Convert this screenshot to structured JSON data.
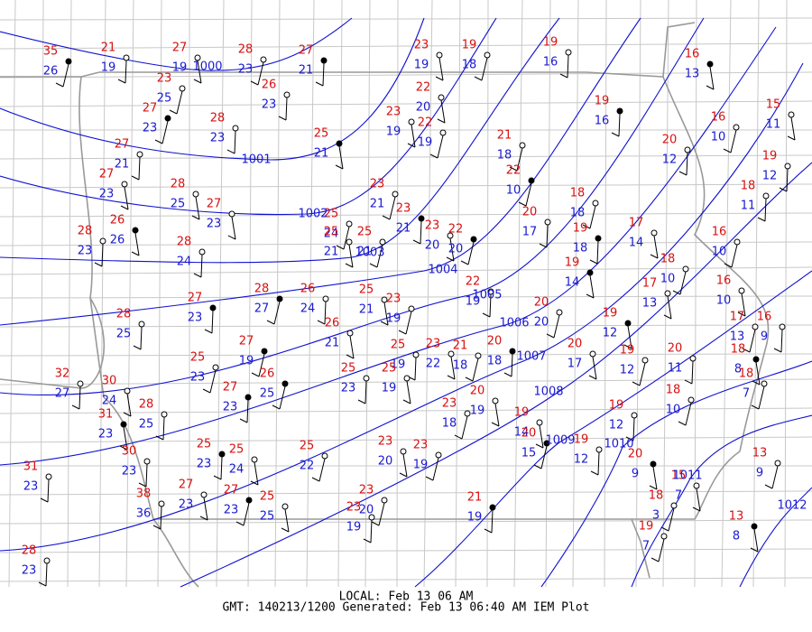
{
  "stations": [
    {
      "temp": 35,
      "dewpoint": 26
    },
    {
      "temp": 21,
      "dewpoint": 19
    },
    {
      "temp": 27,
      "dewpoint": 19
    },
    {
      "temp": 28,
      "dewpoint": 23
    },
    {
      "temp": 27,
      "dewpoint": 21
    },
    {
      "temp": 23,
      "dewpoint": 19
    },
    {
      "temp": 19,
      "dewpoint": 18
    },
    {
      "temp": 19,
      "dewpoint": 16
    },
    {
      "temp": 16,
      "dewpoint": 13
    },
    {
      "temp": 23,
      "dewpoint": 25
    },
    {
      "temp": 26,
      "dewpoint": 23
    },
    {
      "temp": 22,
      "dewpoint": 20
    },
    {
      "temp": 27,
      "dewpoint": 23
    },
    {
      "temp": 28,
      "dewpoint": 23
    },
    {
      "temp": 23,
      "dewpoint": 19
    },
    {
      "temp": 22,
      "dewpoint": 19
    },
    {
      "temp": 19,
      "dewpoint": 16
    },
    {
      "temp": 15,
      "dewpoint": 11
    },
    {
      "temp": 16,
      "dewpoint": 10
    },
    {
      "temp": 27,
      "dewpoint": 21
    },
    {
      "temp": 25,
      "dewpoint": 21
    },
    {
      "temp": 21,
      "dewpoint": 18
    },
    {
      "temp": 20,
      "dewpoint": 12
    },
    {
      "temp": 27,
      "dewpoint": 23
    },
    {
      "temp": 22,
      "dewpoint": 10
    },
    {
      "temp": 19,
      "dewpoint": 12
    },
    {
      "temp": 28,
      "dewpoint": 25
    },
    {
      "temp": 23,
      "dewpoint": 21
    },
    {
      "temp": 23,
      "dewpoint": 21
    },
    {
      "temp": 27,
      "dewpoint": 23
    },
    {
      "temp": 18,
      "dewpoint": 18
    },
    {
      "temp": 18,
      "dewpoint": 11
    },
    {
      "temp": 26,
      "dewpoint": 26
    },
    {
      "temp": 25,
      "dewpoint": 24
    },
    {
      "temp": 20,
      "dewpoint": 17
    },
    {
      "temp": 23,
      "dewpoint": 20
    },
    {
      "temp": 22,
      "dewpoint": 20
    },
    {
      "temp": 28,
      "dewpoint": 23
    },
    {
      "temp": 25,
      "dewpoint": 21
    },
    {
      "temp": 25,
      "dewpoint": 21
    },
    {
      "temp": 19,
      "dewpoint": 18
    },
    {
      "temp": 17,
      "dewpoint": 14
    },
    {
      "temp": 16,
      "dewpoint": 10
    },
    {
      "temp": 28,
      "dewpoint": 24
    },
    {
      "temp": 19,
      "dewpoint": 14
    },
    {
      "temp": 18,
      "dewpoint": 10
    },
    {
      "temp": 22,
      "dewpoint": 19
    },
    {
      "temp": 16,
      "dewpoint": 10
    },
    {
      "temp": 28,
      "dewpoint": 27
    },
    {
      "temp": 26,
      "dewpoint": 24
    },
    {
      "temp": 25,
      "dewpoint": 21
    },
    {
      "temp": 23,
      "dewpoint": 19
    },
    {
      "temp": 27,
      "dewpoint": 23
    },
    {
      "temp": 17,
      "dewpoint": 13
    },
    {
      "temp": 20,
      "dewpoint": 20
    },
    {
      "temp": 28,
      "dewpoint": 25
    },
    {
      "temp": 19,
      "dewpoint": 12
    },
    {
      "temp": 17,
      "dewpoint": 13
    },
    {
      "temp": 16,
      "dewpoint": 9
    },
    {
      "temp": 26,
      "dewpoint": 21
    },
    {
      "temp": 27,
      "dewpoint": 19
    },
    {
      "temp": 25,
      "dewpoint": 19
    },
    {
      "temp": 23,
      "dewpoint": 22
    },
    {
      "temp": 21,
      "dewpoint": 18
    },
    {
      "temp": 20,
      "dewpoint": 18
    },
    {
      "temp": 20,
      "dewpoint": 17
    },
    {
      "temp": 19,
      "dewpoint": 12
    },
    {
      "temp": 20,
      "dewpoint": 11
    },
    {
      "temp": 18,
      "dewpoint": 8
    },
    {
      "temp": 25,
      "dewpoint": 23
    },
    {
      "temp": 25,
      "dewpoint": 23
    },
    {
      "temp": 25,
      "dewpoint": 19
    },
    {
      "temp": 26,
      "dewpoint": 25
    },
    {
      "temp": 32,
      "dewpoint": 27
    },
    {
      "temp": 30,
      "dewpoint": 24
    },
    {
      "temp": 18,
      "dewpoint": 7
    },
    {
      "temp": 27,
      "dewpoint": 23
    },
    {
      "temp": 20,
      "dewpoint": 19
    },
    {
      "temp": 18,
      "dewpoint": 10
    },
    {
      "temp": 28,
      "dewpoint": 25
    },
    {
      "temp": 31,
      "dewpoint": 23
    },
    {
      "temp": 23,
      "dewpoint": 18
    },
    {
      "temp": 19,
      "dewpoint": 12
    },
    {
      "temp": 19,
      "dewpoint": 14
    },
    {
      "temp": 20,
      "dewpoint": 15
    },
    {
      "temp": 19,
      "dewpoint": 12
    },
    {
      "temp": 23,
      "dewpoint": 20
    },
    {
      "temp": 23,
      "dewpoint": 19
    },
    {
      "temp": 25,
      "dewpoint": 23
    },
    {
      "temp": 25,
      "dewpoint": 24
    },
    {
      "temp": 25,
      "dewpoint": 22
    },
    {
      "temp": 30,
      "dewpoint": 23
    },
    {
      "temp": 20,
      "dewpoint": 9
    },
    {
      "temp": 13,
      "dewpoint": 9
    },
    {
      "temp": 31,
      "dewpoint": 23
    },
    {
      "temp": 27,
      "dewpoint": 23
    },
    {
      "temp": 27,
      "dewpoint": 23
    },
    {
      "temp": 38,
      "dewpoint": 36
    },
    {
      "temp": 25,
      "dewpoint": 25
    },
    {
      "temp": 23,
      "dewpoint": 20
    },
    {
      "temp": 21,
      "dewpoint": 19
    },
    {
      "temp": 15,
      "dewpoint": 7
    },
    {
      "temp": 18,
      "dewpoint": 3
    },
    {
      "temp": 23,
      "dewpoint": 19
    },
    {
      "temp": 13,
      "dewpoint": 8
    },
    {
      "temp": 19,
      "dewpoint": 7
    },
    {
      "temp": 28,
      "dewpoint": 23
    }
  ],
  "isobars": [
    "1000",
    "1001",
    "1002",
    "1003",
    "1004",
    "1005",
    "1006",
    "1007",
    "1008",
    "1009",
    "1010",
    "1011",
    "1012"
  ],
  "footer": {
    "local": "LOCAL: Feb 13 06 AM",
    "generated": "GMT: 140213/1200 Generated: Feb 13 06:40 AM IEM Plot"
  }
}
